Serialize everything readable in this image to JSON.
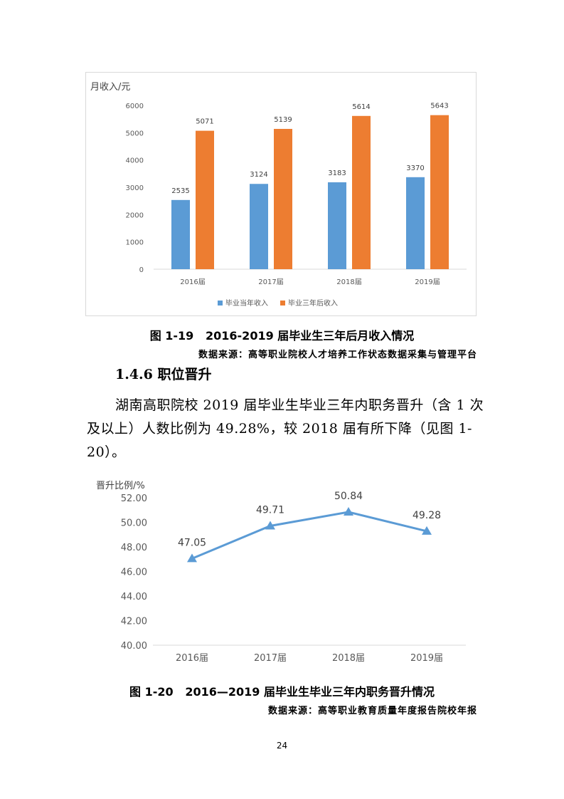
{
  "charts": [
    {
      "type": "bar",
      "ylabel": "月收入/元",
      "categories": [
        "2016届",
        "2017届",
        "2018届",
        "2019届"
      ],
      "series": [
        {
          "name": "毕业当年收入",
          "color": "#5b9bd5",
          "values": [
            2535,
            3124,
            3183,
            3370
          ]
        },
        {
          "name": "毕业三年后收入",
          "color": "#ed7d31",
          "values": [
            5071,
            5139,
            5614,
            5643
          ]
        }
      ],
      "yticks": [
        "0",
        "1000",
        "2000",
        "3000",
        "4000",
        "5000",
        "6000"
      ],
      "ylim": [
        0,
        6000
      ],
      "grid": false,
      "legend": "bottom"
    },
    {
      "type": "line",
      "ylabel": "晋升比例/%",
      "categories": [
        "2016届",
        "2017届",
        "2018届",
        "2019届"
      ],
      "series": [
        {
          "name": "",
          "color": "#5b9bd5",
          "values": [
            47.05,
            49.71,
            50.84,
            49.28
          ],
          "labels": [
            "47.05",
            "49.71",
            "50.84",
            "49.28"
          ]
        }
      ],
      "yticks": [
        "40.00",
        "42.00",
        "44.00",
        "46.00",
        "48.00",
        "50.00",
        "52.00"
      ],
      "ylim": [
        40,
        52
      ],
      "grid": false,
      "legend": "none"
    }
  ],
  "chart_data": [
    {
      "type": "bar",
      "categories": [
        "2016届",
        "2017届",
        "2018届",
        "2019届"
      ],
      "series": [
        {
          "name": "毕业当年收入",
          "values": [
            2535,
            3124,
            3183,
            3370
          ]
        },
        {
          "name": "毕业三年后收入",
          "values": [
            5071,
            5139,
            5614,
            5643
          ]
        }
      ],
      "ylabel": "月收入/元",
      "ylim": [
        0,
        6000
      ]
    },
    {
      "type": "line",
      "categories": [
        "2016届",
        "2017届",
        "2018届",
        "2019届"
      ],
      "series": [
        {
          "values": [
            47.05,
            49.71,
            50.84,
            49.28
          ]
        }
      ],
      "ylabel": "晋升比例/%",
      "ylim": [
        40,
        52
      ]
    }
  ],
  "captions": {
    "fig19": "图 1-19   2016-2019 届毕业生三年后月收入情况",
    "fig19_source": "数据来源：高等职业院校人才培养工作状态数据采集与管理平台",
    "fig20": "图 1-20   2016—2019 届毕业生毕业三年内职务晋升情况",
    "fig20_source": "数据来源：高等职业教育质量年度报告院校年报"
  },
  "section": {
    "heading": "1.4.6 职位晋升",
    "paragraph": "湖南高职院校 2019 届毕业生毕业三年内职务晋升（含 1 次及以上）人数比例为 49.28%，较 2018 届有所下降（见图 1-20）。"
  },
  "page_number": "24"
}
